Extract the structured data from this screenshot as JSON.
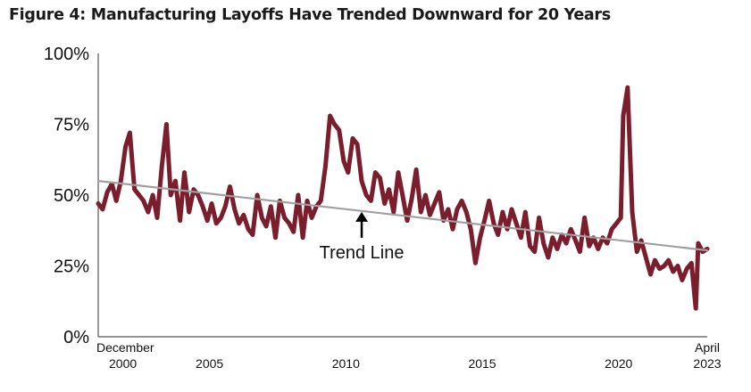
{
  "chart_data": {
    "type": "line",
    "title": "Figure 4: Manufacturing Layoffs Have Trended Downward for 20 Years",
    "xlabel": "",
    "ylabel": "",
    "ylim": [
      0,
      100
    ],
    "y_ticks": [
      {
        "value": 0,
        "label": "0%"
      },
      {
        "value": 25,
        "label": "25%"
      },
      {
        "value": 50,
        "label": "50%"
      },
      {
        "value": 75,
        "label": "75%"
      },
      {
        "value": 100,
        "label": "100%"
      }
    ],
    "xlim": [
      2000.92,
      2023.25
    ],
    "x_ticks": [
      {
        "value": 2000.92,
        "line1": "December",
        "line2": "2000"
      },
      {
        "value": 2005,
        "line1": "",
        "line2": "2005"
      },
      {
        "value": 2010,
        "line1": "",
        "line2": "2010"
      },
      {
        "value": 2015,
        "line1": "",
        "line2": "2015"
      },
      {
        "value": 2020,
        "line1": "",
        "line2": "2020"
      },
      {
        "value": 2023.25,
        "line1": "April",
        "line2": "2023"
      }
    ],
    "grid": false,
    "series": [
      {
        "color": "#7a1e2e",
        "points": [
          [
            2000.92,
            47
          ],
          [
            2001.08,
            45
          ],
          [
            2001.25,
            51
          ],
          [
            2001.42,
            54
          ],
          [
            2001.58,
            48
          ],
          [
            2001.75,
            55
          ],
          [
            2001.92,
            67
          ],
          [
            2002.08,
            72
          ],
          [
            2002.25,
            52
          ],
          [
            2002.42,
            50
          ],
          [
            2002.58,
            48
          ],
          [
            2002.75,
            44
          ],
          [
            2002.92,
            50
          ],
          [
            2003.08,
            42
          ],
          [
            2003.25,
            60
          ],
          [
            2003.42,
            75
          ],
          [
            2003.58,
            50
          ],
          [
            2003.75,
            55
          ],
          [
            2003.92,
            41
          ],
          [
            2004.08,
            58
          ],
          [
            2004.25,
            44
          ],
          [
            2004.42,
            52
          ],
          [
            2004.58,
            50
          ],
          [
            2004.75,
            46
          ],
          [
            2004.92,
            41
          ],
          [
            2005.08,
            47
          ],
          [
            2005.25,
            40
          ],
          [
            2005.42,
            42
          ],
          [
            2005.58,
            46
          ],
          [
            2005.75,
            53
          ],
          [
            2005.92,
            45
          ],
          [
            2006.08,
            40
          ],
          [
            2006.25,
            43
          ],
          [
            2006.42,
            38
          ],
          [
            2006.58,
            36
          ],
          [
            2006.75,
            50
          ],
          [
            2006.92,
            42
          ],
          [
            2007.08,
            39
          ],
          [
            2007.25,
            46
          ],
          [
            2007.42,
            35
          ],
          [
            2007.58,
            48
          ],
          [
            2007.75,
            42
          ],
          [
            2007.92,
            40
          ],
          [
            2008.08,
            37
          ],
          [
            2008.25,
            50
          ],
          [
            2008.42,
            35
          ],
          [
            2008.58,
            48
          ],
          [
            2008.75,
            42
          ],
          [
            2008.92,
            46
          ],
          [
            2009.08,
            48
          ],
          [
            2009.25,
            60
          ],
          [
            2009.42,
            78
          ],
          [
            2009.58,
            75
          ],
          [
            2009.75,
            73
          ],
          [
            2009.92,
            62
          ],
          [
            2010.08,
            58
          ],
          [
            2010.25,
            70
          ],
          [
            2010.42,
            68
          ],
          [
            2010.58,
            55
          ],
          [
            2010.75,
            50
          ],
          [
            2010.92,
            48
          ],
          [
            2011.08,
            58
          ],
          [
            2011.25,
            56
          ],
          [
            2011.42,
            47
          ],
          [
            2011.58,
            52
          ],
          [
            2011.75,
            44
          ],
          [
            2011.92,
            58
          ],
          [
            2012.08,
            50
          ],
          [
            2012.25,
            41
          ],
          [
            2012.42,
            49
          ],
          [
            2012.58,
            59
          ],
          [
            2012.75,
            44
          ],
          [
            2012.92,
            50
          ],
          [
            2013.08,
            43
          ],
          [
            2013.25,
            47
          ],
          [
            2013.42,
            51
          ],
          [
            2013.58,
            41
          ],
          [
            2013.75,
            45
          ],
          [
            2013.92,
            38
          ],
          [
            2014.08,
            45
          ],
          [
            2014.25,
            48
          ],
          [
            2014.42,
            44
          ],
          [
            2014.58,
            38
          ],
          [
            2014.75,
            26
          ],
          [
            2014.92,
            35
          ],
          [
            2015.08,
            41
          ],
          [
            2015.25,
            48
          ],
          [
            2015.42,
            40
          ],
          [
            2015.58,
            36
          ],
          [
            2015.75,
            44
          ],
          [
            2015.92,
            38
          ],
          [
            2016.08,
            45
          ],
          [
            2016.25,
            40
          ],
          [
            2016.42,
            35
          ],
          [
            2016.58,
            44
          ],
          [
            2016.75,
            32
          ],
          [
            2016.92,
            30
          ],
          [
            2017.08,
            42
          ],
          [
            2017.25,
            33
          ],
          [
            2017.42,
            28
          ],
          [
            2017.58,
            35
          ],
          [
            2017.75,
            31
          ],
          [
            2017.92,
            36
          ],
          [
            2018.08,
            33
          ],
          [
            2018.25,
            38
          ],
          [
            2018.42,
            34
          ],
          [
            2018.58,
            30
          ],
          [
            2018.75,
            42
          ],
          [
            2018.92,
            32
          ],
          [
            2019.08,
            35
          ],
          [
            2019.25,
            31
          ],
          [
            2019.42,
            35
          ],
          [
            2019.58,
            33
          ],
          [
            2019.75,
            38
          ],
          [
            2019.92,
            40
          ],
          [
            2020.08,
            42
          ],
          [
            2020.17,
            78
          ],
          [
            2020.33,
            88
          ],
          [
            2020.5,
            44
          ],
          [
            2020.67,
            30
          ],
          [
            2020.83,
            34
          ],
          [
            2021.0,
            28
          ],
          [
            2021.17,
            22
          ],
          [
            2021.33,
            27
          ],
          [
            2021.5,
            24
          ],
          [
            2021.67,
            25
          ],
          [
            2021.83,
            27
          ],
          [
            2022.0,
            23
          ],
          [
            2022.17,
            25
          ],
          [
            2022.33,
            20
          ],
          [
            2022.5,
            24
          ],
          [
            2022.67,
            26
          ],
          [
            2022.83,
            10
          ],
          [
            2022.92,
            33
          ],
          [
            2023.08,
            30
          ],
          [
            2023.25,
            31
          ]
        ]
      }
    ],
    "trend_line": {
      "color": "#a0a0a0",
      "start": [
        2000.92,
        55
      ],
      "end": [
        2023.25,
        30.5
      ]
    },
    "annotation": {
      "label": "Trend Line",
      "x": 2010.58,
      "y": 45
    }
  }
}
